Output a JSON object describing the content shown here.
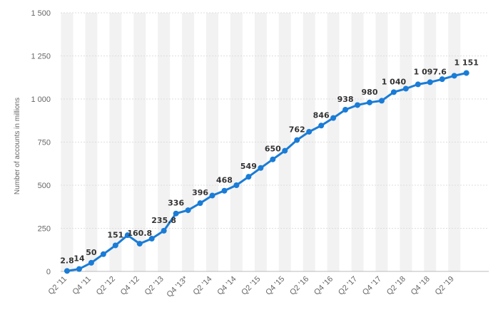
{
  "chart_data": {
    "type": "line",
    "title": "",
    "xlabel": "",
    "ylabel": "Number of accounts in millions",
    "ylim": [
      0,
      1500
    ],
    "yticks": [
      0,
      250,
      500,
      750,
      1000,
      1250,
      1500
    ],
    "ytick_labels": [
      "0",
      "250",
      "500",
      "750",
      "1 000",
      "1 250",
      "1 500"
    ],
    "grid": "horizontal dashed",
    "legend": "none",
    "line_color": "#1a7cd6",
    "band_color": "#f2f2f2",
    "gridline_color": "#dddddd",
    "categories": [
      "Q2 '11",
      "Q3 '11",
      "Q4 '11",
      "Q1 '12",
      "Q2 '12",
      "Q3 '12",
      "Q4 '12",
      "Q1 '13",
      "Q2 '13",
      "Q3 '13",
      "Q4 '13*",
      "Q1 '14",
      "Q2 '14",
      "Q3 '14",
      "Q4 '14",
      "Q1 '15",
      "Q2 '15",
      "Q3 '15",
      "Q4 '15",
      "Q1 '16",
      "Q2 '16",
      "Q3 '16",
      "Q4 '16",
      "Q1 '17",
      "Q2 '17",
      "Q3 '17",
      "Q4 '17",
      "Q1 '18",
      "Q2 '18",
      "Q3 '18",
      "Q4 '18",
      "Q1 '19",
      "Q2 '19",
      "Q3 '19"
    ],
    "xtick_labels": [
      "Q2 '11",
      "",
      "Q4 '11",
      "",
      "Q2 '12",
      "",
      "Q4 '12",
      "",
      "Q2 '13",
      "",
      "Q4 '13*",
      "",
      "Q2 '14",
      "",
      "Q4 '14",
      "",
      "Q2 '15",
      "",
      "Q4 '15",
      "",
      "Q2 '16",
      "",
      "Q4 '16",
      "",
      "Q2 '17",
      "",
      "Q4 '17",
      "",
      "Q2 '18",
      "",
      "Q4 '18",
      "",
      "Q2 '19",
      ""
    ],
    "values": [
      2.8,
      14,
      50,
      100,
      151,
      210,
      160.8,
      190,
      235.8,
      336,
      355,
      396,
      440,
      468,
      500,
      549,
      600,
      650,
      700,
      762,
      810,
      846,
      890,
      938,
      965,
      980,
      990,
      1040,
      1060,
      1085,
      1097.6,
      1115,
      1135,
      1151
    ],
    "data_labels": [
      "2.8",
      "14",
      "50",
      "",
      "151",
      "",
      "160.8",
      "",
      "235.8",
      "336",
      "",
      "396",
      "",
      "468",
      "",
      "549",
      "",
      "650",
      "",
      "762",
      "",
      "846",
      "",
      "938",
      "",
      "980",
      "",
      "1 040",
      "",
      "",
      "1 097.6",
      "",
      "",
      "1 151"
    ]
  }
}
